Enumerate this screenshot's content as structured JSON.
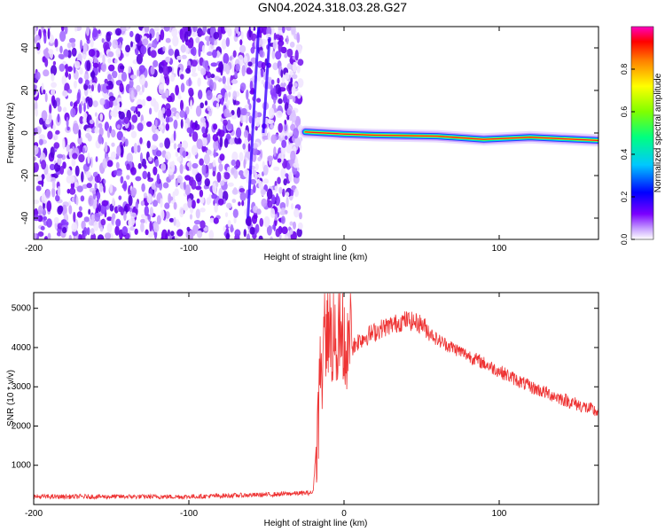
{
  "title": "GN04.2024.318.03.28.G27",
  "chart_data": [
    {
      "type": "heatmap",
      "xlabel": "Height of straight line (km)",
      "ylabel": "Frequency (Hz)",
      "xlim": [
        -200,
        164
      ],
      "ylim": [
        -50,
        50
      ],
      "xticks": [
        -200,
        -100,
        0,
        100
      ],
      "yticks": [
        -40,
        -20,
        0,
        20,
        40
      ],
      "colorbar": {
        "label": "Normalized spectral amplitude",
        "range": [
          0,
          1
        ],
        "ticks": [
          "0.0",
          "0.2",
          "0.4",
          "0.6",
          "0.8"
        ]
      },
      "signal_onset_km": -28,
      "noise_region_km": [
        -200,
        -28
      ],
      "track_frequency_hz": [
        {
          "x": -25,
          "y": 0.5
        },
        {
          "x": 0,
          "y": -0.5
        },
        {
          "x": 20,
          "y": -1
        },
        {
          "x": 60,
          "y": -1.5
        },
        {
          "x": 90,
          "y": -3
        },
        {
          "x": 120,
          "y": -2
        },
        {
          "x": 164,
          "y": -3.5
        }
      ],
      "grid": false
    },
    {
      "type": "line",
      "xlabel": "Height of straight line (km)",
      "ylabel": "SNR (10 * v/v)",
      "xlim": [
        -200,
        164
      ],
      "ylim": [
        0,
        5400
      ],
      "xticks": [
        -200,
        -100,
        0,
        100
      ],
      "yticks": [
        1000,
        2000,
        3000,
        4000,
        5000
      ],
      "series": [
        {
          "color": "#ee3333",
          "envelope": [
            {
              "x": -200,
              "y": 200
            },
            {
              "x": -150,
              "y": 200
            },
            {
              "x": -100,
              "y": 200
            },
            {
              "x": -50,
              "y": 250
            },
            {
              "x": -20,
              "y": 300
            },
            {
              "x": -16,
              "y": 2500
            },
            {
              "x": -12,
              "y": 4200
            },
            {
              "x": -5,
              "y": 4000
            },
            {
              "x": 0,
              "y": 3800
            },
            {
              "x": 10,
              "y": 4200
            },
            {
              "x": 25,
              "y": 4500
            },
            {
              "x": 40,
              "y": 4700
            },
            {
              "x": 50,
              "y": 4600
            },
            {
              "x": 60,
              "y": 4200
            },
            {
              "x": 80,
              "y": 3800
            },
            {
              "x": 100,
              "y": 3400
            },
            {
              "x": 120,
              "y": 3000
            },
            {
              "x": 140,
              "y": 2700
            },
            {
              "x": 164,
              "y": 2350
            }
          ]
        }
      ],
      "grid": false
    }
  ]
}
